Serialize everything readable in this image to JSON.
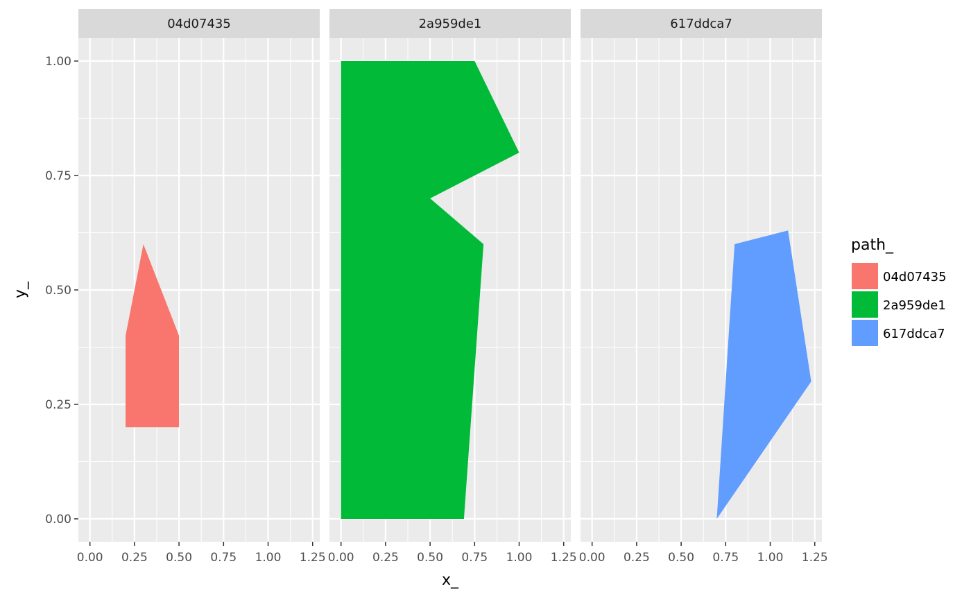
{
  "chart_data": {
    "type": "polygon",
    "facet_by": "path_",
    "xlabel": "x_",
    "ylabel": "y_",
    "xlim": [
      -0.065,
      1.29
    ],
    "ylim": [
      -0.05,
      1.05
    ],
    "x_ticks": [
      0.0,
      0.25,
      0.5,
      0.75,
      1.0,
      1.25
    ],
    "x_tick_labels": [
      "0.00",
      "0.25",
      "0.50",
      "0.75",
      "1.00",
      "1.25"
    ],
    "y_ticks": [
      0.0,
      0.25,
      0.5,
      0.75,
      1.0
    ],
    "y_tick_labels": [
      "0.00",
      "0.25",
      "0.50",
      "0.75",
      "1.00"
    ],
    "grid": true,
    "legend": {
      "title": "path_",
      "position": "right"
    },
    "series": [
      {
        "name": "04d07435",
        "color": "#F8766D",
        "points": [
          [
            0.2,
            0.2
          ],
          [
            0.5,
            0.2
          ],
          [
            0.5,
            0.4
          ],
          [
            0.3,
            0.6
          ],
          [
            0.2,
            0.4
          ]
        ]
      },
      {
        "name": "2a959de1",
        "color": "#00BA38",
        "points": [
          [
            0.0,
            0.0
          ],
          [
            0.69,
            0.0
          ],
          [
            0.8,
            0.6
          ],
          [
            0.5,
            0.7
          ],
          [
            1.0,
            0.8
          ],
          [
            0.75,
            1.0
          ],
          [
            0.0,
            1.0
          ]
        ]
      },
      {
        "name": "617ddca7",
        "color": "#619CFF",
        "points": [
          [
            0.7,
            0.0
          ],
          [
            1.23,
            0.3
          ],
          [
            1.1,
            0.63
          ],
          [
            0.8,
            0.6
          ]
        ]
      }
    ]
  }
}
